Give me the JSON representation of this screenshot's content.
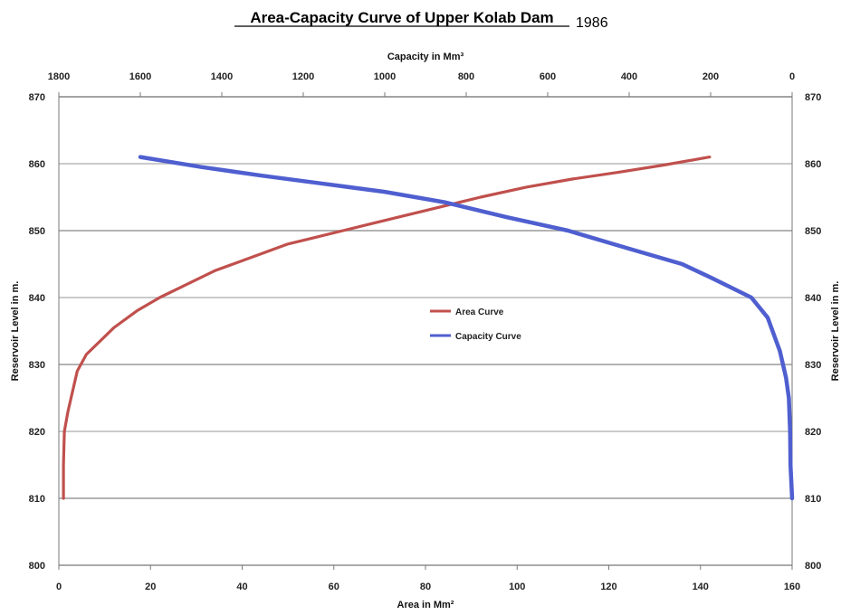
{
  "chart_data": {
    "type": "line",
    "title": "Area-Capacity Curve of Upper Kolab Dam",
    "title_suffix": "1986",
    "x_bottom": {
      "label": "Area in Mm²",
      "range": [
        0,
        160
      ],
      "ticks": [
        "0",
        "20",
        "40",
        "60",
        "80",
        "100",
        "120",
        "140",
        "160"
      ]
    },
    "x_top": {
      "label": "Capacity in Mm³",
      "range": [
        1800,
        0
      ],
      "reversed": true,
      "ticks": [
        "1800",
        "1600",
        "1400",
        "1200",
        "1000",
        "800",
        "600",
        "400",
        "200",
        "0"
      ]
    },
    "y": {
      "label_left": "Reservoir Level in m.",
      "label_right": "Reservoir Level in m.",
      "range": [
        800,
        870
      ],
      "ticks": [
        "800",
        "810",
        "820",
        "830",
        "840",
        "850",
        "860",
        "870"
      ]
    },
    "grid": "horizontal",
    "legend_position": "center",
    "series": [
      {
        "name": "Area Curve",
        "axis": "bottom",
        "color": "#c0504d",
        "points": [
          [
            1,
            810
          ],
          [
            1,
            815
          ],
          [
            1.2,
            820
          ],
          [
            2,
            823
          ],
          [
            3,
            826
          ],
          [
            4,
            829
          ],
          [
            6,
            831.5
          ],
          [
            9,
            833.5
          ],
          [
            12,
            835.5
          ],
          [
            17,
            838
          ],
          [
            22,
            840
          ],
          [
            28,
            842
          ],
          [
            34,
            844
          ],
          [
            38,
            845
          ],
          [
            44,
            846.5
          ],
          [
            50,
            848
          ],
          [
            56,
            849
          ],
          [
            62,
            850
          ],
          [
            68,
            851
          ],
          [
            74,
            852
          ],
          [
            80,
            853
          ],
          [
            86,
            854
          ],
          [
            92,
            855
          ],
          [
            102,
            856.5
          ],
          [
            112,
            857.7
          ],
          [
            122,
            858.7
          ],
          [
            132,
            859.8
          ],
          [
            142,
            861
          ]
        ]
      },
      {
        "name": "Capacity Curve",
        "axis": "top",
        "color": "#4f5fd0",
        "points": [
          [
            1600,
            861
          ],
          [
            1450,
            859.5
          ],
          [
            1300,
            858.2
          ],
          [
            1150,
            857
          ],
          [
            1000,
            855.8
          ],
          [
            850,
            854.2
          ],
          [
            700,
            852
          ],
          [
            550,
            850
          ],
          [
            400,
            847.3
          ],
          [
            270,
            845
          ],
          [
            200,
            843
          ],
          [
            150,
            841.5
          ],
          [
            100,
            840
          ],
          [
            60,
            837
          ],
          [
            30,
            832
          ],
          [
            15,
            828
          ],
          [
            8,
            825
          ],
          [
            5,
            820
          ],
          [
            4,
            815
          ],
          [
            0,
            810
          ]
        ]
      }
    ]
  }
}
